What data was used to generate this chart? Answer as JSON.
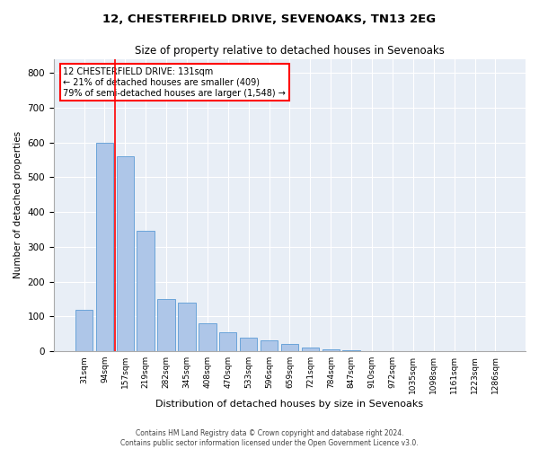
{
  "title1": "12, CHESTERFIELD DRIVE, SEVENOAKS, TN13 2EG",
  "title2": "Size of property relative to detached houses in Sevenoaks",
  "xlabel": "Distribution of detached houses by size in Sevenoaks",
  "ylabel": "Number of detached properties",
  "categories": [
    "31sqm",
    "94sqm",
    "157sqm",
    "219sqm",
    "282sqm",
    "345sqm",
    "408sqm",
    "470sqm",
    "533sqm",
    "596sqm",
    "659sqm",
    "721sqm",
    "784sqm",
    "847sqm",
    "910sqm",
    "972sqm",
    "1035sqm",
    "1098sqm",
    "1161sqm",
    "1223sqm",
    "1286sqm"
  ],
  "values": [
    120,
    600,
    560,
    345,
    150,
    140,
    80,
    55,
    40,
    30,
    20,
    10,
    5,
    2,
    0,
    0,
    0,
    0,
    0,
    0,
    0
  ],
  "bar_color": "#aec6e8",
  "bar_edge_color": "#5b9bd5",
  "bg_color": "#e8eef6",
  "grid_color": "#ffffff",
  "red_line_x": 1.5,
  "annotation_title": "12 CHESTERFIELD DRIVE: 131sqm",
  "annotation_line1": "← 21% of detached houses are smaller (409)",
  "annotation_line2": "79% of semi-detached houses are larger (1,548) →",
  "ylim": [
    0,
    840
  ],
  "yticks": [
    0,
    100,
    200,
    300,
    400,
    500,
    600,
    700,
    800
  ],
  "footer1": "Contains HM Land Registry data © Crown copyright and database right 2024.",
  "footer2": "Contains public sector information licensed under the Open Government Licence v3.0."
}
